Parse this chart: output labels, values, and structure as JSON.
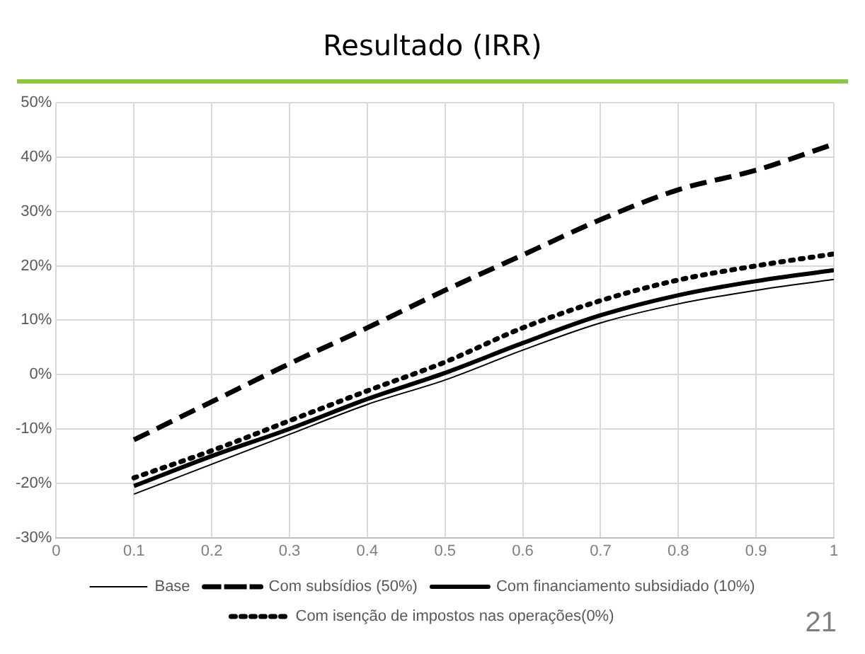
{
  "chart_data": {
    "type": "line",
    "title": "Resultado (IRR)",
    "x": [
      0.1,
      0.2,
      0.3,
      0.4,
      0.5,
      0.6,
      0.7,
      0.8,
      0.9,
      1.0
    ],
    "series": [
      {
        "name": "Base",
        "color": "#000000",
        "line_style": "solid",
        "values": [
          -22,
          -16.5,
          -11,
          -5.5,
          -1,
          4.5,
          9.5,
          13,
          15.5,
          17.5
        ]
      },
      {
        "name": "Com subsídios (50%)",
        "color": "#000000",
        "line_style": "dashed",
        "values": [
          -12,
          -5,
          2,
          8.6,
          15.5,
          22,
          28.5,
          34,
          37.6,
          42.4
        ]
      },
      {
        "name": "Com financiamento subsidiado (10%)",
        "color": "#000000",
        "line_style": "solid",
        "values": [
          -20.5,
          -15,
          -10,
          -4.5,
          0.3,
          5.8,
          10.9,
          14.6,
          17.2,
          19.2
        ]
      },
      {
        "name": "Com isenção de impostos nas operações(0%)",
        "color": "#000000",
        "line_style": "dotted",
        "values": [
          -19,
          -14,
          -8.5,
          -3,
          2.3,
          8.6,
          13.6,
          17.4,
          20,
          22.2
        ]
      }
    ],
    "xlim": [
      0,
      1
    ],
    "xticks": [
      0,
      0.1,
      0.2,
      0.3,
      0.4,
      0.5,
      0.6,
      0.7,
      0.8,
      0.9,
      1
    ],
    "ylim": [
      -30,
      50
    ],
    "yticks": [
      {
        "value": -30,
        "label": "-30%"
      },
      {
        "value": -20,
        "label": "-20%"
      },
      {
        "value": -10,
        "label": "-10%"
      },
      {
        "value": 0,
        "label": "0%"
      },
      {
        "value": 10,
        "label": "10%"
      },
      {
        "value": 20,
        "label": "20%"
      },
      {
        "value": 30,
        "label": "30%"
      },
      {
        "value": 40,
        "label": "40%"
      },
      {
        "value": 50,
        "label": "50%"
      }
    ],
    "grid": true,
    "legend": "bottom",
    "marker": "none",
    "annotations": [
      "21"
    ]
  }
}
